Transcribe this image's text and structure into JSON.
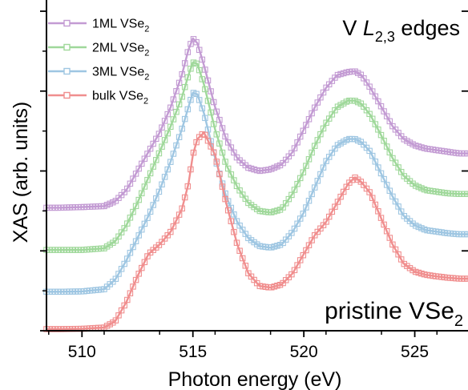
{
  "chart_data": {
    "type": "line",
    "xlabel": "Photon energy (eV)",
    "ylabel": "XAS (arb. units)",
    "xlim": [
      508.4,
      527.4
    ],
    "ylim": [
      0,
      1
    ],
    "xticks": [
      510,
      515,
      520,
      525
    ],
    "xtick_labels": [
      "510",
      "515",
      "520",
      "525"
    ],
    "grid": false,
    "marker": "square",
    "legend_position": "top-left",
    "annotations": {
      "top": {
        "main": "V ",
        "italic": "L",
        "sub": "2,3",
        "tail": " edges"
      },
      "bottom": {
        "main": "pristine VSe",
        "sub": "2"
      }
    },
    "x": [
      508.4,
      509,
      510,
      511,
      511.5,
      512,
      512.5,
      513,
      513.5,
      514,
      514.5,
      514.8,
      515,
      515.2,
      515.5,
      516,
      516.5,
      517,
      517.5,
      518,
      518.5,
      519,
      519.5,
      520,
      520.5,
      521,
      521.5,
      522,
      522.3,
      522.6,
      523,
      523.5,
      524,
      524.5,
      525,
      525.5,
      526,
      526.5,
      527,
      527.4
    ],
    "series": [
      {
        "name_main": "1ML VSe",
        "name_sub": "2",
        "color": "#c39bd3",
        "values": [
          0.385,
          0.385,
          0.387,
          0.39,
          0.405,
          0.44,
          0.5,
          0.56,
          0.62,
          0.7,
          0.8,
          0.88,
          0.915,
          0.9,
          0.83,
          0.7,
          0.6,
          0.54,
          0.51,
          0.5,
          0.505,
          0.52,
          0.56,
          0.63,
          0.7,
          0.76,
          0.8,
          0.81,
          0.812,
          0.8,
          0.76,
          0.7,
          0.64,
          0.6,
          0.58,
          0.57,
          0.565,
          0.56,
          0.555,
          0.555
        ]
      },
      {
        "name_main": "2ML VSe",
        "name_sub": "2",
        "color": "#9fd89a",
        "values": [
          0.253,
          0.253,
          0.253,
          0.258,
          0.28,
          0.33,
          0.4,
          0.48,
          0.56,
          0.64,
          0.73,
          0.8,
          0.84,
          0.835,
          0.77,
          0.63,
          0.52,
          0.45,
          0.4,
          0.375,
          0.37,
          0.38,
          0.43,
          0.5,
          0.58,
          0.65,
          0.7,
          0.72,
          0.72,
          0.71,
          0.675,
          0.61,
          0.54,
          0.485,
          0.455,
          0.44,
          0.435,
          0.43,
          0.428,
          0.428
        ]
      },
      {
        "name_main": "3ML VSe",
        "name_sub": "2",
        "color": "#9ec6e2",
        "values": [
          0.122,
          0.122,
          0.123,
          0.13,
          0.16,
          0.22,
          0.29,
          0.36,
          0.44,
          0.53,
          0.63,
          0.7,
          0.745,
          0.74,
          0.68,
          0.54,
          0.42,
          0.34,
          0.29,
          0.265,
          0.26,
          0.27,
          0.31,
          0.37,
          0.45,
          0.53,
          0.58,
          0.6,
          0.6,
          0.59,
          0.56,
          0.49,
          0.42,
          0.36,
          0.33,
          0.315,
          0.31,
          0.305,
          0.302,
          0.302
        ]
      },
      {
        "name_main": "bulk VSe",
        "name_sub": "2",
        "color": "#f08e8e",
        "values": [
          0.005,
          0.005,
          0.006,
          0.01,
          0.03,
          0.09,
          0.17,
          0.24,
          0.27,
          0.31,
          0.38,
          0.46,
          0.55,
          0.6,
          0.62,
          0.55,
          0.4,
          0.27,
          0.18,
          0.14,
          0.135,
          0.145,
          0.18,
          0.24,
          0.3,
          0.34,
          0.4,
          0.46,
          0.48,
          0.465,
          0.43,
          0.35,
          0.27,
          0.21,
          0.185,
          0.175,
          0.17,
          0.166,
          0.163,
          0.163
        ]
      }
    ]
  }
}
